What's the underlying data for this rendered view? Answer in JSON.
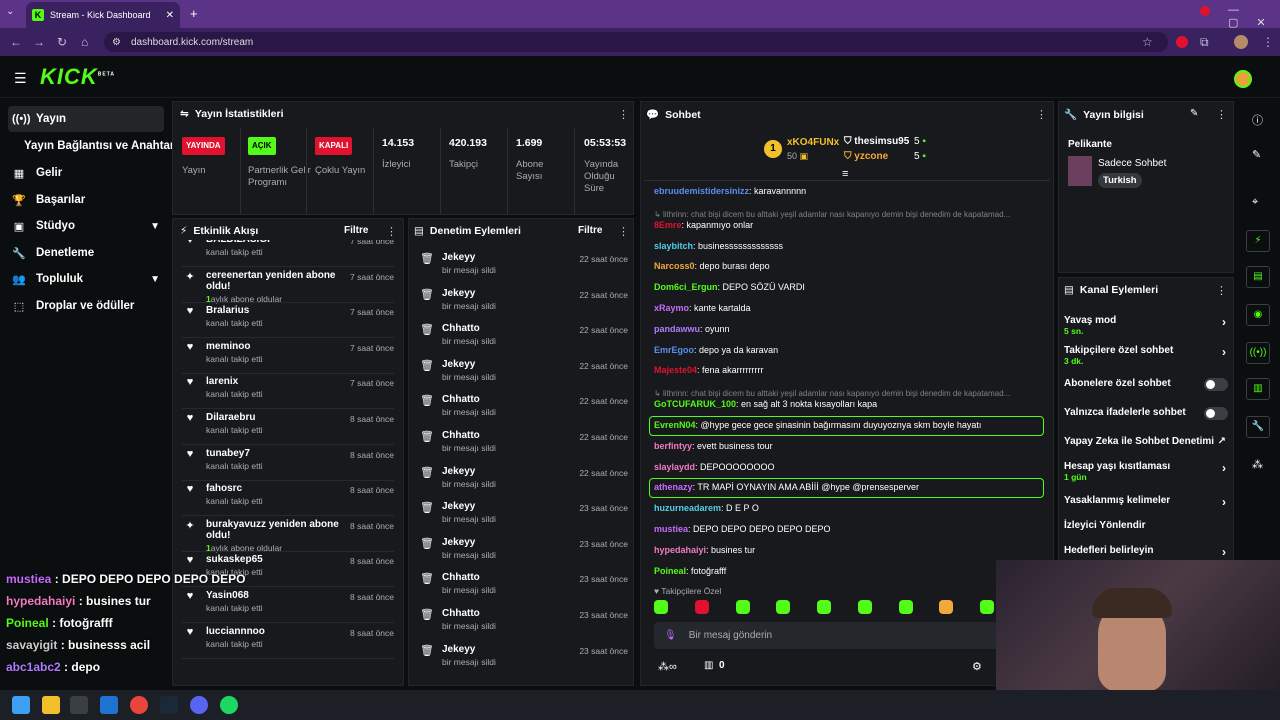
{
  "browser": {
    "tab_title": "Stream - Kick Dashboard",
    "url": "dashboard.kick.com/stream"
  },
  "app": {
    "logo": "KICK",
    "logo_sup": "BETA"
  },
  "sidebar": {
    "items": [
      {
        "label": "Yayın",
        "icon": "broadcast-icon"
      },
      {
        "label": "Yayın Bağlantısı ve Anahtarı"
      },
      {
        "label": "Gelir",
        "icon": "revenue-icon"
      },
      {
        "label": "Başarılar",
        "icon": "trophy-icon"
      },
      {
        "label": "Stüdyo",
        "icon": "studio-icon"
      },
      {
        "label": "Denetleme",
        "icon": "wrench-icon"
      },
      {
        "label": "Topluluk",
        "icon": "community-icon"
      },
      {
        "label": "Droplar ve ödüller",
        "icon": "drops-icon"
      }
    ]
  },
  "stats": {
    "title": "Yayın İstatistikleri",
    "items": [
      {
        "badge": "YAYINDA",
        "label": "Yayın",
        "color": "#e0122f"
      },
      {
        "badge": "AÇIK",
        "label": "Partnerlik Gelir Programı",
        "color": "#53fc18"
      },
      {
        "badge": "KAPALI",
        "label": "Çoklu Yayın",
        "color": "#e0122f"
      },
      {
        "value": "14.153",
        "label": "İzleyici"
      },
      {
        "value": "420.193",
        "label": "Takipçi"
      },
      {
        "value": "1.699",
        "label": "Abone Sayısı"
      },
      {
        "value": "05:53:53",
        "label": "Yayında Olduğu Süre"
      }
    ]
  },
  "activity": {
    "title": "Etkinlik Akışı",
    "filter": "Filtre",
    "items": [
      {
        "name": "BALDIZASIGI",
        "sub": "kanalı takip etti",
        "time": "7 saat önce"
      },
      {
        "name": "cereenertan yeniden abone oldu!",
        "sub": "aylık abone oldular",
        "months": "1",
        "time": "7 saat önce"
      },
      {
        "name": "Bralarius",
        "sub": "kanalı takip etti",
        "time": "7 saat önce"
      },
      {
        "name": "meminoo",
        "sub": "kanalı takip etti",
        "time": "7 saat önce"
      },
      {
        "name": "larenix",
        "sub": "kanalı takip etti",
        "time": "7 saat önce"
      },
      {
        "name": "Dilaraebru",
        "sub": "kanalı takip etti",
        "time": "8 saat önce"
      },
      {
        "name": "tunabey7",
        "sub": "kanalı takip etti",
        "time": "8 saat önce"
      },
      {
        "name": "fahosrc",
        "sub": "kanalı takip etti",
        "time": "8 saat önce"
      },
      {
        "name": "burakyavuzz yeniden abone oldu!",
        "sub": "aylık abone oldular",
        "months": "1",
        "time": "8 saat önce"
      },
      {
        "name": "sukaskep65",
        "sub": "kanalı takip etti",
        "time": "8 saat önce"
      },
      {
        "name": "Yasin068",
        "sub": "kanalı takip etti",
        "time": "8 saat önce"
      },
      {
        "name": "lucciannnoo",
        "sub": "kanalı takip etti",
        "time": "8 saat önce"
      }
    ]
  },
  "moderation": {
    "title": "Denetim Eylemleri",
    "filter": "Filtre",
    "items": [
      {
        "name": "Jekeyy",
        "sub": "bir mesajı sildi",
        "time": "22 saat önce"
      },
      {
        "name": "Jekeyy",
        "sub": "bir mesajı sildi",
        "time": "22 saat önce"
      },
      {
        "name": "Chhatto",
        "sub": "bir mesajı sildi",
        "time": "22 saat önce"
      },
      {
        "name": "Jekeyy",
        "sub": "bir mesajı sildi",
        "time": "22 saat önce"
      },
      {
        "name": "Chhatto",
        "sub": "bir mesajı sildi",
        "time": "22 saat önce"
      },
      {
        "name": "Chhatto",
        "sub": "bir mesajı sildi",
        "time": "22 saat önce"
      },
      {
        "name": "Jekeyy",
        "sub": "bir mesajı sildi",
        "time": "22 saat önce"
      },
      {
        "name": "Jekeyy",
        "sub": "bir mesajı sildi",
        "time": "23 saat önce"
      },
      {
        "name": "Jekeyy",
        "sub": "bir mesajı sildi",
        "time": "23 saat önce"
      },
      {
        "name": "Chhatto",
        "sub": "bir mesajı sildi",
        "time": "23 saat önce"
      },
      {
        "name": "Chhatto",
        "sub": "bir mesajı sildi",
        "time": "23 saat önce"
      },
      {
        "name": "Jekeyy",
        "sub": "bir mesajı sildi",
        "time": "23 saat önce"
      }
    ]
  },
  "chat": {
    "title": "Sohbet",
    "leaderboard": [
      {
        "rank": "1",
        "name": "xKO4FUNx",
        "value": "50"
      },
      {
        "name": "thesimsu95",
        "value": "5"
      },
      {
        "name": "yzcone",
        "value": "5"
      }
    ],
    "messages": [
      {
        "user": "ebruudemistidersinizz",
        "text": "karavannnnn",
        "color": "#5b8def"
      },
      {
        "reply": "lithrinn: chat bişi dicem bu alttaki yeşil adamlar nası kapanıyo demin bişi denedim de kapatamad..."
      },
      {
        "user": "8Emre",
        "text": "kapanmıyo onlar",
        "color": "#e0122f"
      },
      {
        "user": "slaybitch",
        "text": "businesssssssssssss",
        "color": "#4fd1e8"
      },
      {
        "user": "Narcoss0",
        "text": "depo burası depo",
        "color": "#f2a93b"
      },
      {
        "user": "Dom6ci_Ergun",
        "text": "DEPO SÖZÜ VARDI",
        "color": "#53fc18"
      },
      {
        "user": "xRaymo",
        "text": "kante kartalda",
        "color": "#c86bfa"
      },
      {
        "user": "pandawwu",
        "text": "oyunn",
        "color": "#b07cff"
      },
      {
        "user": "EmrEgoo",
        "text": "depo ya da karavan",
        "color": "#5b8def"
      },
      {
        "user": "Majeste04",
        "text": "fena akarrrrrrrrr",
        "color": "#e0122f"
      },
      {
        "reply": "lithrinn: chat bişi dicem bu alttaki yeşil adamlar nası kapanıyo demin bişi denedim de kapatamad..."
      },
      {
        "user": "GoTCUFARUK_100",
        "text": "en sağ alt 3 nokta kısayolları kapa",
        "color": "#53fc18"
      },
      {
        "user": "EvrenN04",
        "text": "@hype gece gece şinasinin bağırmasını duyuyoznya skm boyle hayatı",
        "color": "#53fc18",
        "highlight": true
      },
      {
        "user": "berfintyy",
        "text": "evett business tour",
        "color": "#f07cc4"
      },
      {
        "user": "slaylaydd",
        "text": "DEPOOOOOOOO",
        "color": "#f07cc4"
      },
      {
        "user": "athenazy",
        "text": "TR MAPİ OYNAYIN AMA ABİİİ @hype @prensesperver",
        "color": "#c86bfa",
        "highlight": true
      },
      {
        "user": "huzurneadarem",
        "text": "D E P O",
        "color": "#4fd1e8"
      },
      {
        "user": "mustiea",
        "text": "DEPO DEPO DEPO DEPO DEPO",
        "color": "#c86bfa"
      },
      {
        "user": "hypedahaiyi",
        "text": "busines tur",
        "color": "#f07cc4"
      },
      {
        "user": "Poineal",
        "text": "fotoğrafff",
        "color": "#53fc18"
      }
    ],
    "followers_only": "Takipçilere Özel",
    "input_placeholder": "Bir mesaj gönderin",
    "viewer_count": "0"
  },
  "stream_info": {
    "title": "Yayın bilgisi",
    "stream_title": "Pelikante",
    "category": "Sadece Sohbet",
    "tag": "Turkish"
  },
  "channel_actions": {
    "title": "Kanal Eylemleri",
    "items": [
      {
        "label": "Yavaş mod",
        "sub": "5 sn.",
        "control": "chevron"
      },
      {
        "label": "Takipçilere özel sohbet",
        "sub": "3 dk.",
        "control": "chevron"
      },
      {
        "label": "Abonelere özel sohbet",
        "control": "toggle"
      },
      {
        "label": "Yalnızca ifadelerle sohbet",
        "control": "toggle"
      },
      {
        "label": "Yapay Zeka ile Sohbet Denetimi",
        "control": "external"
      },
      {
        "label": "Hesap yaşı kısıtlaması",
        "sub": "1 gün",
        "control": "chevron"
      },
      {
        "label": "Yasaklanmış kelimeler",
        "control": "chevron"
      },
      {
        "label": "İzleyici Yönlendir",
        "control": "none"
      },
      {
        "label": "Hedefleri belirleyin",
        "control": "chevron"
      }
    ]
  },
  "overlay_chat": [
    {
      "user": "mustiea",
      "text": "DEPO DEPO DEPO DEPO DEPO",
      "color": "#c86bfa"
    },
    {
      "user": "hypedahaiyi",
      "text": "busines tur",
      "color": "#f07cc4"
    },
    {
      "user": "Poineal",
      "text": "fotoğrafff",
      "color": "#53fc18"
    },
    {
      "user": "savayigit",
      "text": "businesss acil",
      "color": "#cccccc"
    },
    {
      "user": "abc1abc2",
      "text": "depo",
      "color": "#b07cff"
    }
  ],
  "colors": {
    "accent": "#53fc18",
    "live": "#e0122f",
    "browser": "#5b3488"
  }
}
